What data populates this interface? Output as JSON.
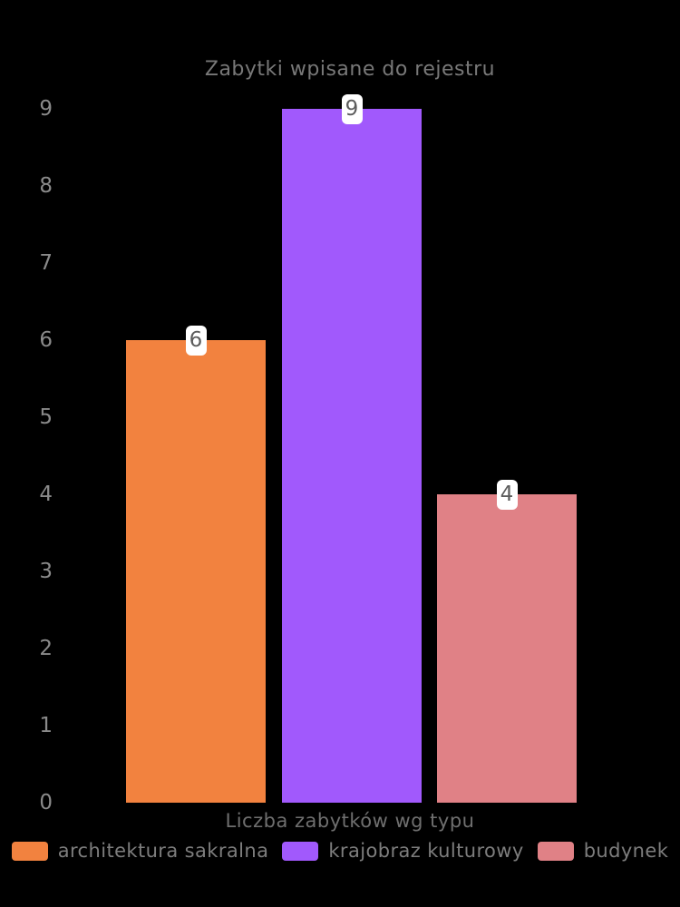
{
  "chart": {
    "title": "Zabytki wpisane do rejestru",
    "xlabel": "Liczba zabytków wg typu"
  },
  "chart_data": {
    "type": "bar",
    "title": "Zabytki wpisane do rejestru",
    "xlabel": "Liczba zabytków wg typu",
    "ylabel": "",
    "categories": [
      "architektura sakralna",
      "krajobraz kulturowy",
      "budynek"
    ],
    "values": [
      6,
      9,
      4
    ],
    "value_labels": [
      "6",
      "9",
      "4"
    ],
    "colors": [
      "#F2823F",
      "#A159FC",
      "#E08186"
    ],
    "ylim": [
      0,
      9
    ],
    "yticks": [
      0,
      1,
      2,
      3,
      4,
      5,
      6,
      7,
      8,
      9
    ],
    "grid": false,
    "legend_position": "bottom",
    "background_color": "#000000",
    "title_color": "#787878",
    "tick_color": "#8A8A8A",
    "value_chip_background": "#FFFFFF",
    "value_chip_text_color": "#5C5C5C"
  }
}
